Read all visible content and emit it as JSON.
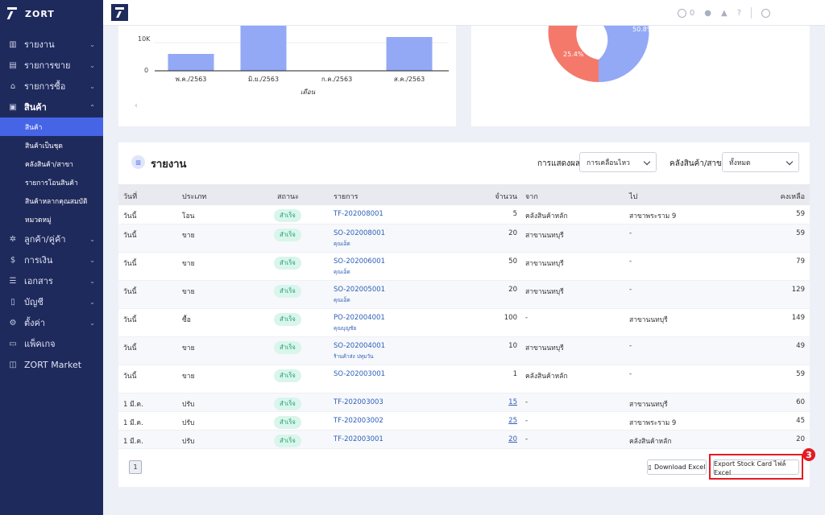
{
  "sidebar": {
    "brand": "ZORT",
    "items": [
      {
        "label": "รายงาน",
        "chev": "⌄"
      },
      {
        "label": "รายการขาย",
        "chev": "⌄"
      },
      {
        "label": "รายการซื้อ",
        "chev": "⌄"
      },
      {
        "label": "สินค้า",
        "chev": "⌃"
      },
      {
        "label": "ลูกค้า/คู่ค้า",
        "chev": "⌄"
      },
      {
        "label": "การเงิน",
        "chev": "⌄"
      },
      {
        "label": "เอกสาร",
        "chev": "⌄"
      },
      {
        "label": "บัญชี",
        "chev": "⌄"
      },
      {
        "label": "ตั้งค่า",
        "chev": "⌄"
      },
      {
        "label": "แพ็คเกจ",
        "chev": ""
      },
      {
        "label": "ZORT Market",
        "chev": ""
      }
    ],
    "sub_items": [
      "สินค้า",
      "สินค้าเป็นชุด",
      "คลังสินค้า/สาขา",
      "รายการโอนสินค้า",
      "สินค้าหลากคุณสมบัติ",
      "หมวดหมู่"
    ]
  },
  "topbar": {
    "credit_count": "0"
  },
  "chart_data": {
    "type": "bar",
    "categories": [
      "พ.ค./2563",
      "มิ.ย./2563",
      "ก.ค./2563",
      "ส.ค./2563"
    ],
    "values": [
      6000,
      16000,
      0,
      12000
    ],
    "y_ticks": [
      "10K",
      "0"
    ],
    "xlabel": "เดือน",
    "ylim": [
      0,
      16000
    ]
  },
  "pie": {
    "labels": [
      "50.8%",
      "25.4%"
    ]
  },
  "report": {
    "title": "รายงาน",
    "display_label": "การแสดงผล",
    "display_value": "การเคลื่อนไหว",
    "warehouse_label": "คลังสินค้า/สาขา",
    "warehouse_value": "ทั้งหมด",
    "columns": {
      "date": "วันที่",
      "type": "ประเภท",
      "status": "สถานะ",
      "item": "รายการ",
      "qty": "จำนวน",
      "from": "จาก",
      "to": "ไป",
      "balance": "คงเหลือ"
    },
    "rows": [
      {
        "date": "วันนี้",
        "type": "โอน",
        "status": "สำเร็จ",
        "doc": "TF-202008001",
        "sub": "",
        "qty": "5",
        "qty_link": false,
        "from": "คลังสินค้าหลัก",
        "to": "สาขาพระราม 9",
        "balance": "59"
      },
      {
        "date": "วันนี้",
        "type": "ขาย",
        "status": "สำเร็จ",
        "doc": "SO-202008001",
        "sub": "คุณเอ็ด",
        "qty": "20",
        "qty_link": false,
        "from": "สาขานนทบุรี",
        "to": "-",
        "balance": "59"
      },
      {
        "date": "วันนี้",
        "type": "ขาย",
        "status": "สำเร็จ",
        "doc": "SO-202006001",
        "sub": "คุณเอ็ด",
        "qty": "50",
        "qty_link": false,
        "from": "สาขานนทบุรี",
        "to": "-",
        "balance": "79"
      },
      {
        "date": "วันนี้",
        "type": "ขาย",
        "status": "สำเร็จ",
        "doc": "SO-202005001",
        "sub": "คุณเอ็ด",
        "qty": "20",
        "qty_link": false,
        "from": "สาขานนทบุรี",
        "to": "-",
        "balance": "129"
      },
      {
        "date": "วันนี้",
        "type": "ซื้อ",
        "status": "สำเร็จ",
        "doc": "PO-202004001",
        "sub": "คุณบุญชัย",
        "qty": "100",
        "qty_link": false,
        "from": "-",
        "to": "สาขานนทบุรี",
        "balance": "149"
      },
      {
        "date": "วันนี้",
        "type": "ขาย",
        "status": "สำเร็จ",
        "doc": "SO-202004001",
        "sub": "ร้านค้าส่ง ปทุมวัน",
        "qty": "10",
        "qty_link": false,
        "from": "สาขานนทบุรี",
        "to": "-",
        "balance": "49"
      },
      {
        "date": "วันนี้",
        "type": "ขาย",
        "status": "สำเร็จ",
        "doc": "SO-202003001",
        "sub": "",
        "qty": "1",
        "qty_link": false,
        "from": "คลังสินค้าหลัก",
        "to": "-",
        "balance": "59"
      },
      {
        "date": "1 มี.ค.",
        "type": "ปรับ",
        "status": "สำเร็จ",
        "doc": "TF-202003003",
        "sub": "",
        "qty": "15",
        "qty_link": true,
        "from": "-",
        "to": "สาขานนทบุรี",
        "balance": "60"
      },
      {
        "date": "1 มี.ค.",
        "type": "ปรับ",
        "status": "สำเร็จ",
        "doc": "TF-202003002",
        "sub": "",
        "qty": "25",
        "qty_link": true,
        "from": "-",
        "to": "สาขาพระราม 9",
        "balance": "45"
      },
      {
        "date": "1 มี.ค.",
        "type": "ปรับ",
        "status": "สำเร็จ",
        "doc": "TF-202003001",
        "sub": "",
        "qty": "20",
        "qty_link": true,
        "from": "-",
        "to": "คลังสินค้าหลัก",
        "balance": "20"
      }
    ],
    "page": "1",
    "download_label": "Download Excel",
    "export_label": "Export Stock Card ไฟล์ Excel"
  },
  "step": "3",
  "colors": {
    "sidebar": "#1f2a5c",
    "active": "#4564e6",
    "bar": "#93a9f6",
    "pie_blue": "#93a9f6",
    "pie_red": "#f4796b",
    "highlight": "#e31b23"
  }
}
